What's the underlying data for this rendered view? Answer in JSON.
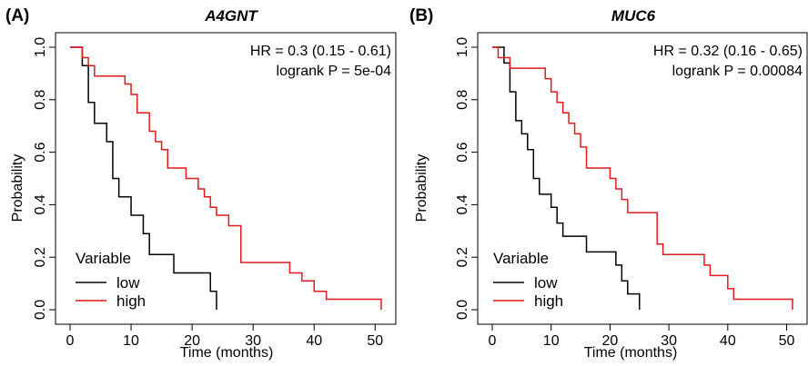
{
  "chart_data": [
    {
      "type": "line",
      "panel_label": "(A)",
      "title": "A4GNT",
      "xlabel": "Time (months)",
      "ylabel": "Probability",
      "xlim": [
        0,
        51
      ],
      "ylim": [
        0,
        1
      ],
      "xticks": [
        "0",
        "10",
        "20",
        "30",
        "40",
        "50"
      ],
      "yticks": [
        "0.0",
        "0.2",
        "0.4",
        "0.6",
        "0.8",
        "1.0"
      ],
      "annotations": [
        "HR = 0.3 (0.15 - 0.61)",
        "logrank P = 5e-04"
      ],
      "legend": {
        "title": "Variable",
        "position": "bottom-left"
      },
      "series": [
        {
          "name": "low",
          "color": "#000000",
          "x": [
            0,
            2,
            3,
            4,
            5,
            6,
            7,
            8,
            10,
            12,
            13,
            17,
            23,
            24
          ],
          "y": [
            1.0,
            0.93,
            0.79,
            0.71,
            0.71,
            0.64,
            0.5,
            0.43,
            0.36,
            0.29,
            0.21,
            0.14,
            0.07,
            0.0
          ]
        },
        {
          "name": "high",
          "color": "#e41a1c",
          "x": [
            0,
            2,
            3,
            4,
            9,
            10,
            11,
            13,
            14,
            15,
            16,
            19,
            21,
            22,
            23,
            24,
            26,
            28,
            36,
            37,
            38,
            40,
            42,
            51
          ],
          "y": [
            1.0,
            0.96,
            0.93,
            0.89,
            0.86,
            0.82,
            0.75,
            0.68,
            0.64,
            0.61,
            0.54,
            0.5,
            0.46,
            0.43,
            0.39,
            0.36,
            0.32,
            0.18,
            0.14,
            0.14,
            0.11,
            0.07,
            0.04,
            0.0
          ]
        }
      ]
    },
    {
      "type": "line",
      "panel_label": "(B)",
      "title": "MUC6",
      "xlabel": "Time (months)",
      "ylabel": "Probability",
      "xlim": [
        0,
        51
      ],
      "ylim": [
        0,
        1
      ],
      "xticks": [
        "0",
        "10",
        "20",
        "30",
        "40",
        "50"
      ],
      "yticks": [
        "0.0",
        "0.2",
        "0.4",
        "0.6",
        "0.8",
        "1.0"
      ],
      "annotations": [
        "HR = 0.32 (0.16 - 0.65)",
        "logrank P = 0.00084"
      ],
      "legend": {
        "title": "Variable",
        "position": "bottom-left"
      },
      "series": [
        {
          "name": "low",
          "color": "#000000",
          "x": [
            0,
            2,
            3,
            4,
            5,
            6,
            7,
            8,
            10,
            11,
            12,
            13,
            16,
            21,
            22,
            23,
            24,
            25
          ],
          "y": [
            1.0,
            0.94,
            0.83,
            0.72,
            0.67,
            0.61,
            0.5,
            0.44,
            0.39,
            0.33,
            0.28,
            0.28,
            0.22,
            0.17,
            0.11,
            0.06,
            0.06,
            0.0
          ]
        },
        {
          "name": "high",
          "color": "#e41a1c",
          "x": [
            0,
            1,
            2,
            3,
            8,
            9,
            10,
            11,
            12,
            13,
            14,
            15,
            16,
            20,
            21,
            22,
            23,
            24,
            28,
            29,
            36,
            37,
            40,
            41,
            42,
            51
          ],
          "y": [
            1.0,
            0.96,
            0.96,
            0.92,
            0.92,
            0.88,
            0.83,
            0.79,
            0.75,
            0.71,
            0.67,
            0.62,
            0.54,
            0.5,
            0.46,
            0.42,
            0.37,
            0.37,
            0.25,
            0.21,
            0.17,
            0.13,
            0.08,
            0.04,
            0.04,
            0.0
          ]
        }
      ]
    }
  ]
}
